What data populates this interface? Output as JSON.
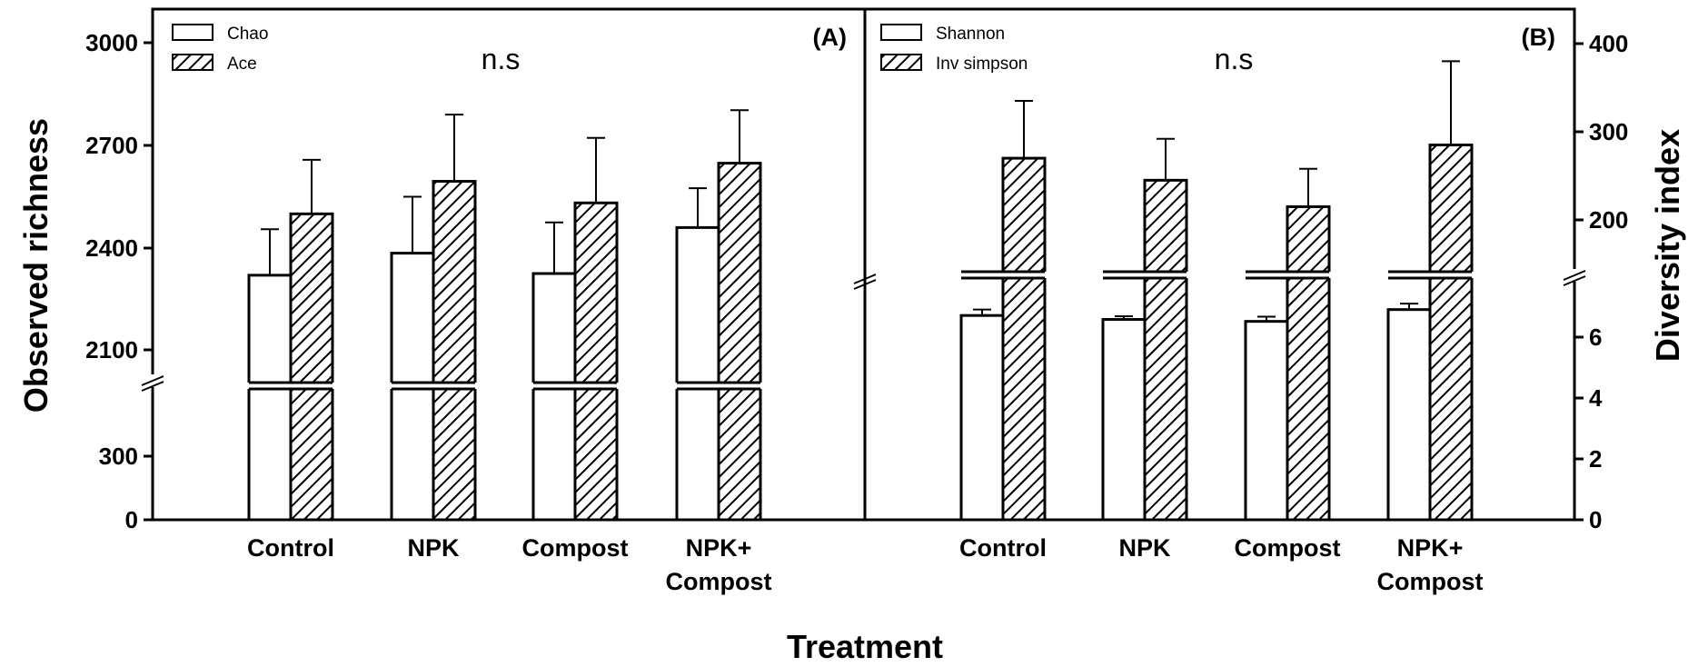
{
  "chart_data": [
    {
      "panel": "(A)",
      "type": "bar",
      "xlabel": "Treatment",
      "ylabel": "Observed richness",
      "categories": [
        "Control",
        "NPK",
        "Compost",
        "NPK+\nCompost"
      ],
      "annotation": "n.s",
      "y_ticks_lower": [
        0,
        300
      ],
      "y_ticks_upper": [
        2100,
        2400,
        2700,
        3000
      ],
      "axis_break": true,
      "series": [
        {
          "name": "Chao",
          "pattern": "open",
          "values": [
            2320,
            2385,
            2325,
            2460
          ],
          "errors": [
            135,
            165,
            150,
            115
          ]
        },
        {
          "name": "Ace",
          "pattern": "hatched",
          "values": [
            2500,
            2595,
            2532,
            2648
          ],
          "errors": [
            158,
            195,
            190,
            155
          ]
        }
      ],
      "legend_position": "top-left"
    },
    {
      "panel": "(B)",
      "type": "bar",
      "ylabel": "Diversity index",
      "categories": [
        "Control",
        "NPK",
        "Compost",
        "NPK+\nCompost"
      ],
      "annotation": "n.s",
      "y_ticks_lower": [
        0,
        2,
        4,
        6
      ],
      "y_ticks_upper": [
        200,
        300,
        400
      ],
      "axis_break": true,
      "series": [
        {
          "name": "Shannon",
          "pattern": "open",
          "values": [
            6.55,
            6.45,
            6.4,
            6.7
          ],
          "errors": [
            0.15,
            0.08,
            0.12,
            0.15
          ]
        },
        {
          "name": "Inv simpson",
          "pattern": "hatched",
          "values": [
            270,
            245,
            215,
            285
          ],
          "errors": [
            65,
            47,
            43,
            95
          ]
        }
      ],
      "legend_position": "top-left"
    }
  ],
  "colors": {
    "axis": "#000000",
    "bar_fill": "#ffffff",
    "hatch": "#000000"
  }
}
